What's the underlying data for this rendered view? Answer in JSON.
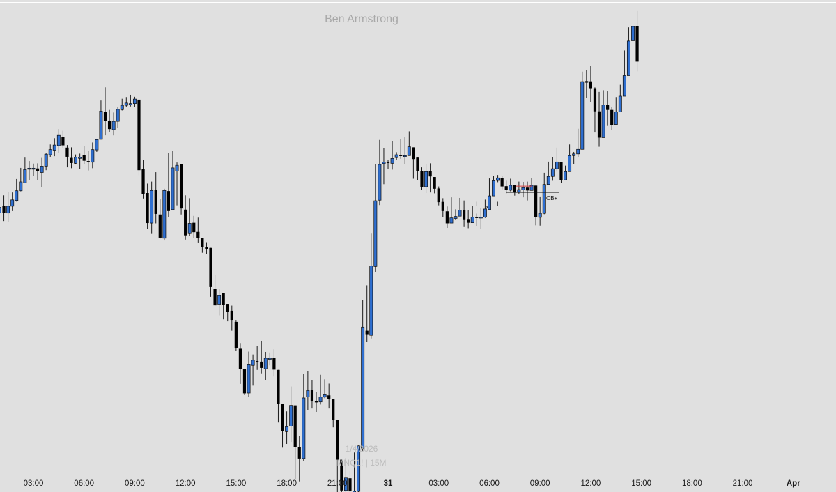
{
  "watermark": {
    "author": "Ben Armstrong",
    "date": "1/4/2026",
    "symbol": "MNQ1! | 15M"
  },
  "colors": {
    "background": "#e0e0e0",
    "up": "#2f6fd0",
    "down": "#000000",
    "wick": "#1a1a1a",
    "level_marker": "#d43c3c"
  },
  "chart_data": {
    "type": "candlestick",
    "title": "",
    "timeframe": "15M",
    "x_ticks": [
      "03:00",
      "06:00",
      "09:00",
      "12:00",
      "15:00",
      "18:00",
      "21:00",
      "31",
      "03:00",
      "06:00",
      "09:00",
      "12:00",
      "15:00",
      "18:00",
      "21:00",
      "Apr"
    ],
    "price_scale": {
      "min": 0,
      "max": 100,
      "note": "relative price units (no price axis shown)"
    },
    "candles": [
      [
        23.1,
        25.0,
        28.2,
        20.2
      ],
      [
        25.5,
        23.0,
        29.2,
        20.2
      ],
      [
        23.0,
        25.4,
        30.3,
        19.9
      ],
      [
        25.4,
        27.6,
        30.2,
        23.7
      ],
      [
        27.4,
        30.8,
        34.9,
        27.0
      ],
      [
        30.8,
        33.9,
        38.8,
        30.6
      ],
      [
        33.6,
        38.2,
        42.4,
        33.5
      ],
      [
        38.6,
        38.7,
        41.2,
        34.6
      ],
      [
        38.5,
        38.7,
        40.3,
        35.9
      ],
      [
        38.6,
        37.7,
        40.4,
        34.6
      ],
      [
        37.2,
        39.4,
        42.3,
        32.0
      ],
      [
        39.4,
        43.6,
        44.0,
        38.0
      ],
      [
        43.4,
        45.2,
        47.0,
        42.6
      ],
      [
        45.0,
        46.8,
        49.2,
        42.9
      ],
      [
        46.6,
        50.2,
        52.4,
        44.0
      ],
      [
        49.6,
        46.7,
        51.8,
        45.9
      ],
      [
        45.9,
        42.7,
        46.8,
        39.0
      ],
      [
        42.3,
        40.5,
        46.0,
        38.7
      ],
      [
        40.4,
        42.5,
        43.5,
        40.2
      ],
      [
        42.5,
        42.5,
        43.8,
        38.5
      ],
      [
        43.4,
        41.3,
        46.4,
        40.2
      ],
      [
        41.2,
        40.9,
        44.8,
        37.9
      ],
      [
        40.8,
        45.2,
        47.7,
        38.7
      ],
      [
        45.1,
        48.7,
        48.4,
        44.4
      ],
      [
        48.8,
        58.7,
        62.4,
        54.1
      ],
      [
        58.5,
        55.2,
        67.0,
        50.2
      ],
      [
        55.2,
        52.4,
        59.1,
        51.4
      ],
      [
        52.2,
        55.1,
        58.2,
        50.2
      ],
      [
        55.1,
        59.3,
        60.1,
        52.7
      ],
      [
        59.2,
        60.7,
        63.0,
        58.9
      ],
      [
        60.7,
        61.5,
        63.6,
        60.2
      ],
      [
        61.0,
        61.3,
        64.4,
        60.3
      ],
      [
        61.3,
        62.9,
        63.7,
        60.2
      ],
      [
        62.7,
        38.0,
        58.4,
        36.2
      ],
      [
        38.4,
        29.7,
        41.6,
        28.1
      ],
      [
        30.0,
        19.5,
        33.3,
        17.5
      ],
      [
        19.5,
        30.9,
        34.0,
        15.7
      ],
      [
        31.0,
        22.7,
        37.3,
        19.4
      ],
      [
        22.5,
        14.4,
        28.0,
        14.1
      ],
      [
        14.2,
        30.9,
        31.5,
        13.4
      ],
      [
        30.7,
        23.7,
        44.0,
        21.5
      ],
      [
        24.2,
        38.8,
        44.8,
        24.4
      ],
      [
        37.7,
        39.7,
        40.7,
        25.7
      ],
      [
        40.0,
        24.6,
        38.8,
        22.5
      ],
      [
        24.2,
        15.2,
        29.2,
        13.7
      ],
      [
        15.8,
        19.4,
        28.2,
        15.0
      ],
      [
        19.6,
        16.3,
        22.0,
        14.2
      ],
      [
        16.4,
        14.2,
        21.4,
        12.7
      ],
      [
        14.3,
        11.0,
        12.8,
        9.1
      ],
      [
        11.0,
        10.3,
        12.8,
        8.6
      ],
      [
        10.8,
        -2.9,
        10.6,
        -6.3
      ],
      [
        -3.6,
        -9.3,
        1.3,
        -9.5
      ],
      [
        -8.9,
        -5.9,
        -3.7,
        -12.8
      ],
      [
        -4.9,
        -9.2,
        -7.9,
        -14.2
      ],
      [
        -8.8,
        -11.6,
        -10.4,
        -14.9
      ],
      [
        -11.2,
        -14.4,
        -9.4,
        -18.2
      ],
      [
        -15.1,
        -24.3,
        -14.4,
        -25.2
      ],
      [
        -24.5,
        -31.6,
        -22.5,
        -36.8
      ],
      [
        -31.6,
        -40.1,
        -37.2,
        -40.7
      ],
      [
        -40.0,
        -30.1,
        -25.5,
        -41.4
      ],
      [
        -30.3,
        -28.5,
        -26.5,
        -37.4
      ],
      [
        -28.8,
        -29.2,
        -23.6,
        -31.9
      ],
      [
        -29.0,
        -31.2,
        -21.7,
        -33.1
      ],
      [
        -31.5,
        -27.8,
        -25.6,
        -35.6
      ],
      [
        -28.0,
        -27.8,
        -25.8,
        -30.3
      ],
      [
        -27.7,
        -31.8,
        -24.7,
        -34.2
      ],
      [
        -31.9,
        -43.9,
        -33.0,
        -50.3
      ],
      [
        -43.9,
        -53.4,
        -44.6,
        -59.1
      ],
      [
        -53.5,
        -51.8,
        -46.4,
        -57.8
      ],
      [
        -51.6,
        -44.3,
        -37.7,
        -57.1
      ],
      [
        -44.3,
        -58.9,
        -47.9,
        -70.2
      ],
      [
        -58.9,
        -62.9,
        -55.0,
        -70.9
      ],
      [
        -62.9,
        -41.7,
        -33.4,
        -63.8
      ],
      [
        -41.3,
        -39.1,
        -32.4,
        -45.9
      ],
      [
        -38.8,
        -42.7,
        -35.5,
        -45.4
      ],
      [
        -42.9,
        -43.1,
        -39.5,
        -46.6
      ],
      [
        -43.1,
        -41.4,
        -33.6,
        -44.0
      ],
      [
        -41.4,
        -40.6,
        -35.2,
        -41.8
      ],
      [
        -40.8,
        -42.1,
        -36.7,
        -45.4
      ],
      [
        -42.1,
        -49.3,
        -43.8,
        -52.0
      ],
      [
        -49.4,
        -63.3,
        -57.6,
        -74.8
      ],
      [
        -63.3,
        -74.1,
        -69.0,
        -81.8
      ],
      [
        -74.1,
        -69.7,
        -62.7,
        -75.1
      ],
      [
        -69.8,
        -74.4,
        -67.3,
        -82.9
      ],
      [
        -74.3,
        -74.3,
        -60.8,
        -82.0
      ],
      [
        -74.4,
        -58.5,
        -58.1,
        -79.6
      ],
      [
        -59.3,
        -16.9,
        -7.5,
        -60.2
      ],
      [
        -18.2,
        -19.4,
        -2.3,
        -22.2
      ],
      [
        -19.8,
        4.5,
        15.8,
        -20.9
      ],
      [
        4.3,
        27.3,
        40.0,
        2.3
      ],
      [
        27.5,
        40.0,
        48.6,
        25.8
      ],
      [
        40.3,
        40.8,
        45.7,
        33.1
      ],
      [
        40.9,
        40.5,
        41.7,
        38.4
      ],
      [
        40.4,
        42.1,
        48.1,
        38.2
      ],
      [
        42.4,
        43.4,
        44.3,
        41.5
      ],
      [
        43.3,
        43.1,
        48.8,
        42.0
      ],
      [
        42.8,
        43.1,
        49.5,
        40.1
      ],
      [
        43.1,
        46.2,
        51.6,
        44.7
      ],
      [
        46.0,
        41.9,
        45.5,
        35.0
      ],
      [
        42.4,
        37.8,
        42.2,
        34.6
      ],
      [
        37.7,
        32.0,
        39.0,
        31.0
      ],
      [
        32.2,
        37.5,
        40.1,
        30.0
      ],
      [
        37.8,
        35.8,
        40.4,
        30.2
      ],
      [
        35.6,
        31.5,
        35.6,
        29.9
      ],
      [
        31.6,
        26.8,
        32.3,
        25.7
      ],
      [
        26.9,
        23.7,
        28.2,
        21.6
      ],
      [
        23.6,
        19.4,
        25.3,
        17.8
      ],
      [
        19.5,
        21.3,
        28.5,
        21.2
      ],
      [
        21.1,
        21.8,
        24.3,
        20.5
      ],
      [
        21.9,
        24.0,
        28.3,
        22.3
      ],
      [
        24.0,
        20.8,
        27.4,
        18.1
      ],
      [
        20.9,
        19.6,
        23.9,
        17.7
      ],
      [
        19.6,
        21.6,
        25.6,
        20.3
      ],
      [
        21.6,
        21.5,
        22.8,
        18.4
      ],
      [
        21.5,
        21.6,
        24.7,
        17.4
      ],
      [
        21.6,
        24.4,
        27.7,
        21.3
      ],
      [
        24.2,
        29.0,
        35.1,
        26.9
      ],
      [
        29.0,
        34.3,
        36.1,
        31.0
      ],
      [
        34.4,
        35.3,
        36.3,
        33.8
      ],
      [
        35.3,
        32.3,
        35.9,
        31.3
      ],
      [
        32.4,
        31.0,
        34.3,
        29.9
      ],
      [
        31.0,
        32.7,
        35.0,
        30.6
      ],
      [
        32.7,
        30.1,
        32.3,
        29.1
      ],
      [
        30.2,
        31.2,
        34.0,
        29.6
      ],
      [
        31.1,
        31.9,
        33.9,
        28.5
      ],
      [
        31.9,
        30.9,
        34.0,
        27.4
      ],
      [
        30.9,
        32.7,
        35.3,
        31.2
      ],
      [
        32.6,
        21.5,
        31.1,
        18.7
      ],
      [
        21.5,
        22.9,
        28.8,
        18.6
      ],
      [
        22.9,
        33.0,
        37.1,
        22.6
      ],
      [
        33.0,
        35.8,
        41.0,
        34.3
      ],
      [
        35.8,
        38.5,
        42.6,
        34.3
      ],
      [
        38.5,
        40.9,
        45.9,
        37.5
      ],
      [
        40.9,
        34.6,
        40.6,
        33.5
      ],
      [
        34.6,
        37.5,
        39.6,
        35.9
      ],
      [
        37.5,
        43.1,
        47.0,
        42.2
      ],
      [
        43.1,
        43.7,
        44.4,
        40.1
      ],
      [
        43.7,
        45.3,
        52.5,
        42.6
      ],
      [
        45.3,
        69.0,
        72.5,
        62.0
      ],
      [
        68.9,
        69.1,
        73.0,
        63.3
      ],
      [
        69.1,
        66.7,
        74.5,
        61.8
      ],
      [
        66.7,
        58.6,
        67.0,
        51.2
      ],
      [
        58.6,
        49.4,
        65.4,
        46.2
      ],
      [
        49.4,
        60.8,
        66.0,
        56.8
      ],
      [
        60.9,
        59.1,
        65.6,
        53.5
      ],
      [
        59.1,
        53.9,
        60.2,
        52.0
      ],
      [
        54.0,
        58.4,
        63.6,
        54.8
      ],
      [
        58.4,
        63.9,
        67.9,
        65.2
      ],
      [
        63.9,
        71.1,
        79.9,
        68.3
      ],
      [
        71.1,
        83.2,
        88.0,
        82.1
      ],
      [
        83.3,
        88.3,
        89.6,
        79.3
      ],
      [
        88.3,
        76.0,
        93.7,
        72.6
      ]
    ],
    "annotations": [
      {
        "label": "OB+",
        "type": "horizontal_level",
        "price": 30.3
      },
      {
        "label": "x",
        "type": "range_marker",
        "price": 25.5
      }
    ],
    "last_candle_top_clipped": true
  }
}
